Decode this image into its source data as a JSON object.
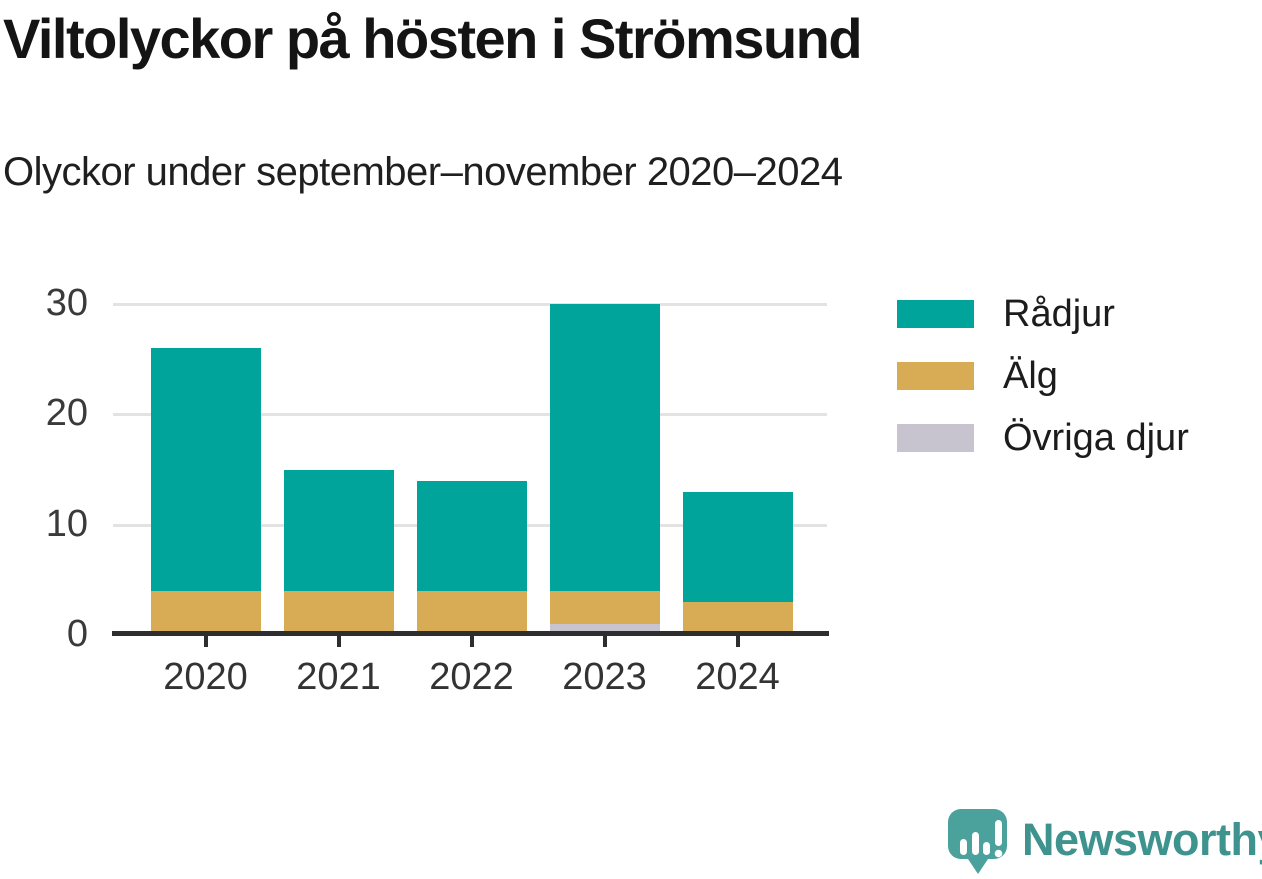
{
  "title": "Viltolyckor på hösten i Strömsund",
  "subtitle": "Olyckor under september–november 2020–2024",
  "chart_data": {
    "type": "bar",
    "stacked": true,
    "title": "Viltolyckor på hösten i Strömsund",
    "subtitle": "Olyckor under september–november 2020–2024",
    "categories": [
      "2020",
      "2021",
      "2022",
      "2023",
      "2024"
    ],
    "series": [
      {
        "name": "Rådjur",
        "color": "#00a49b",
        "values": [
          22,
          11,
          10,
          26,
          10
        ]
      },
      {
        "name": "Älg",
        "color": "#d8ab55",
        "values": [
          4,
          4,
          4,
          3,
          3
        ]
      },
      {
        "name": "Övriga djur",
        "color": "#c7c4cf",
        "values": [
          0,
          0,
          0,
          1,
          0
        ]
      }
    ],
    "stack_totals": [
      26,
      15,
      14,
      30,
      13
    ],
    "xlabel": "",
    "ylabel": "",
    "ylim": [
      0,
      30
    ],
    "yticks": [
      0,
      10,
      20,
      30
    ],
    "grid": "horizontal",
    "legend_position": "right"
  },
  "branding": {
    "logo_text": "Newsworthy",
    "logo_text_color": "#3e938e",
    "icon_color": "#4ba19c",
    "icon_name": "newsworthy-chart-bubble-icon"
  }
}
